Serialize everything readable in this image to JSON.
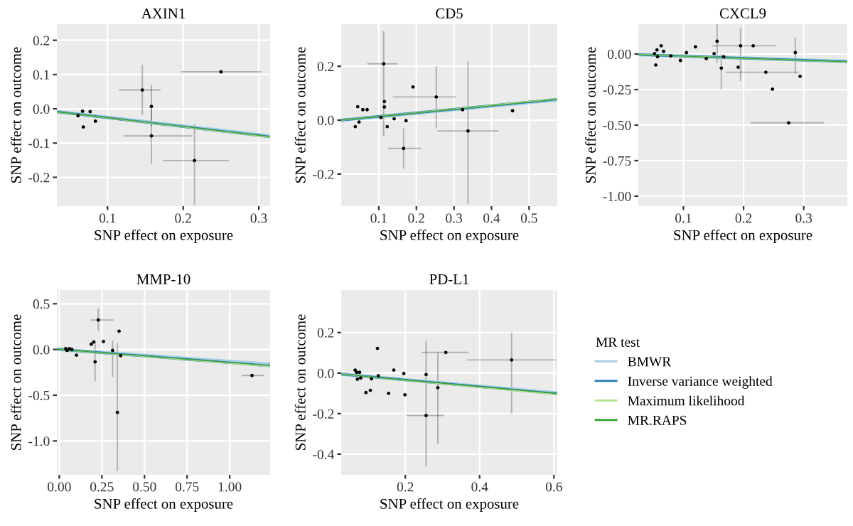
{
  "chart_data": [
    {
      "type": "scatter",
      "title": "AXIN1",
      "xlabel": "SNP effect on exposure",
      "ylabel": "SNP effect on outcome",
      "grid": true,
      "xlim": [
        0.033,
        0.315
      ],
      "ylim": [
        -0.284,
        0.247
      ],
      "xticks": [
        0.1,
        0.2,
        0.3
      ],
      "yticks": [
        -0.2,
        -0.1,
        {
          "value": 0,
          "label": "0.0"
        },
        0.1,
        0.2
      ],
      "series": [
        {
          "marker": "circle",
          "color": "#000000",
          "x": [
            0.25,
            0.146,
            0.158,
            0.158,
            0.215,
            0.077,
            0.084,
            0.068,
            0.067,
            0.061
          ],
          "values": [
            0.108,
            0.055,
            0.007,
            -0.079,
            -0.151,
            -0.008,
            -0.036,
            -0.053,
            -0.007,
            -0.02
          ],
          "xerrors": [
            [
              0.197,
              0.303
            ],
            [
              0.115,
              0.17
            ],
            null,
            [
              0.121,
              0.212
            ],
            [
              0.173,
              0.261
            ],
            null,
            null,
            null,
            null,
            null
          ],
          "errors": [
            null,
            [
              -0.017,
              0.129
            ],
            [
              -0.05,
              0.07
            ],
            [
              -0.16,
              0.0
            ],
            [
              -0.28,
              -0.044
            ],
            null,
            null,
            null,
            null,
            null
          ]
        },
        {
          "type": "line",
          "color": "#a6cee3",
          "x": [
            0.033,
            0.315
          ],
          "values": [
            -0.008,
            -0.079
          ]
        },
        {
          "type": "line",
          "color": "#1f78b4",
          "x": [
            0.033,
            0.315
          ],
          "values": [
            -0.009,
            -0.082
          ]
        },
        {
          "type": "line",
          "color": "#b2df8a",
          "x": [
            0.033,
            0.315
          ],
          "values": [
            -0.009,
            -0.083
          ]
        },
        {
          "type": "line",
          "color": "#33a02c",
          "x": [
            0.033,
            0.315
          ],
          "values": [
            -0.009,
            -0.081
          ]
        }
      ]
    },
    {
      "type": "scatter",
      "title": "CD5",
      "xlabel": "SNP effect on exposure",
      "ylabel": "SNP effect on outcome",
      "grid": true,
      "xlim": [
        0.0,
        0.575
      ],
      "ylim": [
        -0.319,
        0.356
      ],
      "xticks": [
        0.1,
        0.2,
        0.3,
        0.4,
        0.5
      ],
      "yticks": [
        -0.2,
        {
          "value": 0,
          "label": "0.0"
        },
        0.2
      ],
      "series": [
        {
          "marker": "circle",
          "color": "#000000",
          "x": [
            0.113,
            0.191,
            0.253,
            0.323,
            0.3375,
            0.166,
            0.141,
            0.115,
            0.115,
            0.106,
            0.0575,
            0.044,
            0.0375,
            0.0475,
            0.069,
            0.1225,
            0.1725,
            0.456
          ],
          "values": [
            0.209,
            0.123,
            0.086,
            0.039,
            -0.04,
            -0.105,
            0.005,
            0.069,
            0.049,
            0.01,
            0.039,
            0.05,
            -0.024,
            -0.007,
            0.039,
            -0.024,
            -0.002,
            0.035
          ],
          "xerrors": [
            [
              0.069,
              0.15
            ],
            null,
            [
              0.1375,
              0.306
            ],
            null,
            [
              0.256,
              0.419
            ],
            [
              0.125,
              0.2125
            ],
            null,
            null,
            null,
            null,
            null,
            null,
            null,
            null,
            null,
            null,
            null,
            null
          ],
          "errors": [
            [
              -0.06,
              0.33
            ],
            null,
            [
              -0.03,
              0.2
            ],
            null,
            [
              -0.31,
              0.22
            ],
            [
              -0.18,
              -0.03
            ],
            null,
            null,
            null,
            null,
            null,
            null,
            null,
            null,
            null,
            null,
            null,
            null
          ]
        },
        {
          "type": "line",
          "color": "#a6cee3",
          "x": [
            0.0,
            0.575
          ],
          "values": [
            0.0,
            0.075
          ]
        },
        {
          "type": "line",
          "color": "#1f78b4",
          "x": [
            0.0,
            0.575
          ],
          "values": [
            0.0,
            0.078
          ]
        },
        {
          "type": "line",
          "color": "#b2df8a",
          "x": [
            0.0,
            0.575
          ],
          "values": [
            0.0,
            0.079
          ]
        },
        {
          "type": "line",
          "color": "#33a02c",
          "x": [
            0.0,
            0.575
          ],
          "values": [
            0.0,
            0.077
          ]
        }
      ]
    },
    {
      "type": "scatter",
      "title": "CXCL9",
      "xlabel": "SNP effect on exposure",
      "ylabel": "SNP effect on outcome",
      "grid": true,
      "xlim": [
        0.025,
        0.3725
      ],
      "ylim": [
        -1.07,
        0.21
      ],
      "xticks": [
        0.1,
        0.2,
        0.3
      ],
      "yticks": [
        {
          "value": -1,
          "label": "-1.00"
        },
        {
          "value": -0.75,
          "label": "-0.75"
        },
        {
          "value": -0.5,
          "label": "-0.50"
        },
        {
          "value": -0.25,
          "label": "-0.25"
        },
        {
          "value": 0,
          "label": "0.00"
        }
      ],
      "series": [
        {
          "marker": "circle",
          "color": "#000000",
          "x": [
            0.275,
            0.248,
            0.294,
            0.237,
            0.286,
            0.216,
            0.195,
            0.156,
            0.163,
            0.191,
            0.12,
            0.105,
            0.138,
            0.151,
            0.167,
            0.063,
            0.079,
            0.095,
            0.056,
            0.052,
            0.057,
            0.054,
            0.067
          ],
          "values": [
            -0.484,
            -0.247,
            -0.157,
            -0.128,
            0.01,
            0.058,
            0.058,
            0.09,
            -0.099,
            -0.093,
            0.051,
            0.01,
            -0.032,
            0.003,
            -0.019,
            0.058,
            -0.013,
            -0.045,
            0.029,
            0.003,
            -0.019,
            -0.077,
            0.019
          ],
          "xerrors": [
            [
              0.212,
              0.334
            ],
            null,
            null,
            [
              0.17,
              0.292
            ],
            null,
            null,
            [
              0.147,
              0.254
            ],
            null,
            null,
            null,
            null,
            null,
            null,
            null,
            null,
            null,
            null,
            null,
            null,
            null,
            null,
            null,
            null
          ],
          "errors": [
            null,
            null,
            null,
            null,
            [
              -0.141,
              0.115
            ],
            null,
            [
              -0.19,
              0.18
            ],
            [
              -0.06,
              0.21
            ],
            [
              -0.25,
              0.0
            ],
            null,
            null,
            null,
            null,
            null,
            null,
            null,
            null,
            null,
            null,
            null,
            null,
            null,
            null
          ]
        },
        {
          "type": "line",
          "color": "#a6cee3",
          "x": [
            0.025,
            0.3725
          ],
          "values": [
            -0.004,
            -0.052
          ]
        },
        {
          "type": "line",
          "color": "#1f78b4",
          "x": [
            0.025,
            0.3725
          ],
          "values": [
            -0.004,
            -0.054
          ]
        },
        {
          "type": "line",
          "color": "#b2df8a",
          "x": [
            0.025,
            0.3725
          ],
          "values": [
            -0.004,
            -0.056
          ]
        },
        {
          "type": "line",
          "color": "#33a02c",
          "x": [
            0.025,
            0.3725
          ],
          "values": [
            -0.004,
            -0.055
          ]
        }
      ]
    },
    {
      "type": "scatter",
      "title": "MMP-10",
      "xlabel": "SNP effect on exposure",
      "ylabel": "SNP effect on outcome",
      "grid": true,
      "xlim": [
        -0.014,
        1.237
      ],
      "ylim": [
        -1.37,
        0.65
      ],
      "xticks": [
        {
          "value": 0,
          "label": "0.00"
        },
        {
          "value": 0.25,
          "label": "0.25"
        },
        {
          "value": 0.5,
          "label": "0.50"
        },
        {
          "value": 0.75,
          "label": "0.75"
        },
        {
          "value": 1,
          "label": "1.00"
        }
      ],
      "yticks": [
        {
          "value": -1,
          "label": "-1.0"
        },
        -0.5,
        {
          "value": 0,
          "label": "0.0"
        },
        0.5
      ],
      "series": [
        {
          "marker": "circle",
          "color": "#000000",
          "x": [
            1.131,
            0.341,
            0.313,
            0.229,
            0.259,
            0.202,
            0.188,
            0.21,
            0.351,
            0.36,
            0.101,
            0.038,
            0.06,
            0.074,
            0.046
          ],
          "values": [
            -0.284,
            -0.688,
            -0.01,
            0.322,
            0.087,
            0.082,
            0.058,
            -0.135,
            0.2,
            -0.067,
            -0.062,
            0.01,
            0.01,
            0.0,
            -0.01
          ],
          "xerrors": [
            [
              1.07,
              1.2
            ],
            null,
            null,
            [
              0.183,
              0.319
            ],
            null,
            null,
            null,
            null,
            null,
            null,
            null,
            null,
            null,
            null,
            null
          ],
          "errors": [
            null,
            [
              -1.33,
              0.07
            ],
            [
              -0.3,
              0.1
            ],
            [
              0.2,
              0.45
            ],
            null,
            null,
            null,
            [
              -0.35,
              0.1
            ],
            null,
            null,
            null,
            null,
            null,
            null,
            null
          ]
        },
        {
          "type": "line",
          "color": "#a6cee3",
          "x": [
            -0.014,
            1.237
          ],
          "values": [
            0.002,
            -0.16
          ]
        },
        {
          "type": "line",
          "color": "#1f78b4",
          "x": [
            -0.014,
            1.237
          ],
          "values": [
            0.002,
            -0.18
          ]
        },
        {
          "type": "line",
          "color": "#b2df8a",
          "x": [
            -0.014,
            1.237
          ],
          "values": [
            0.002,
            -0.185
          ]
        },
        {
          "type": "line",
          "color": "#33a02c",
          "x": [
            -0.014,
            1.237
          ],
          "values": [
            0.002,
            -0.175
          ]
        }
      ]
    },
    {
      "type": "scatter",
      "title": "PD-L1",
      "xlabel": "SNP effect on exposure",
      "ylabel": "SNP effect on outcome",
      "grid": true,
      "legend": "right",
      "legend_title": "MR test",
      "xlim": [
        0.0275,
        0.609
      ],
      "ylim": [
        -0.502,
        0.41
      ],
      "xticks": [
        0.2,
        0.4,
        0.6
      ],
      "yticks": [
        -0.4,
        -0.2,
        {
          "value": 0,
          "label": "0.0"
        },
        0.2
      ],
      "series": [
        {
          "marker": "circle",
          "color": "#000000",
          "x": [
            0.486,
            0.309,
            0.2875,
            0.256,
            0.256,
            0.196,
            0.199,
            0.169,
            0.155,
            0.125,
            0.1275,
            0.106,
            0.094,
            0.109,
            0.08,
            0.069,
            0.065,
            0.071,
            0.077
          ],
          "values": [
            0.065,
            0.102,
            -0.072,
            -0.209,
            -0.007,
            -0.002,
            -0.107,
            0.015,
            -0.1,
            0.122,
            -0.013,
            -0.085,
            -0.096,
            -0.028,
            -0.024,
            0.004,
            0.015,
            -0.03,
            0.004
          ],
          "xerrors": [
            [
              0.365,
              0.605
            ],
            [
              0.245,
              0.37
            ],
            null,
            [
              0.203,
              0.303
            ],
            null,
            null,
            null,
            null,
            null,
            null,
            null,
            null,
            null,
            null,
            null,
            null,
            null,
            null,
            null
          ],
          "errors": [
            [
              -0.2,
              0.2
            ],
            null,
            [
              -0.35,
              0.1
            ],
            [
              -0.46,
              0.16
            ],
            null,
            null,
            null,
            null,
            null,
            null,
            null,
            null,
            null,
            null,
            null,
            null,
            null,
            null,
            null
          ]
        },
        {
          "type": "line",
          "name": "BMWR",
          "color": "#a6cee3",
          "x": [
            0.0275,
            0.609
          ],
          "values": [
            -0.005,
            -0.098
          ]
        },
        {
          "type": "line",
          "name": "Inverse variance weighted",
          "color": "#1f78b4",
          "x": [
            0.0275,
            0.609
          ],
          "values": [
            -0.005,
            -0.103
          ]
        },
        {
          "type": "line",
          "name": "Maximum likelihood",
          "color": "#b2df8a",
          "x": [
            0.0275,
            0.609
          ],
          "values": [
            -0.005,
            -0.106
          ]
        },
        {
          "type": "line",
          "name": "MR.RAPS",
          "color": "#33a02c",
          "x": [
            0.0275,
            0.609
          ],
          "values": [
            -0.005,
            -0.101
          ]
        }
      ]
    }
  ]
}
